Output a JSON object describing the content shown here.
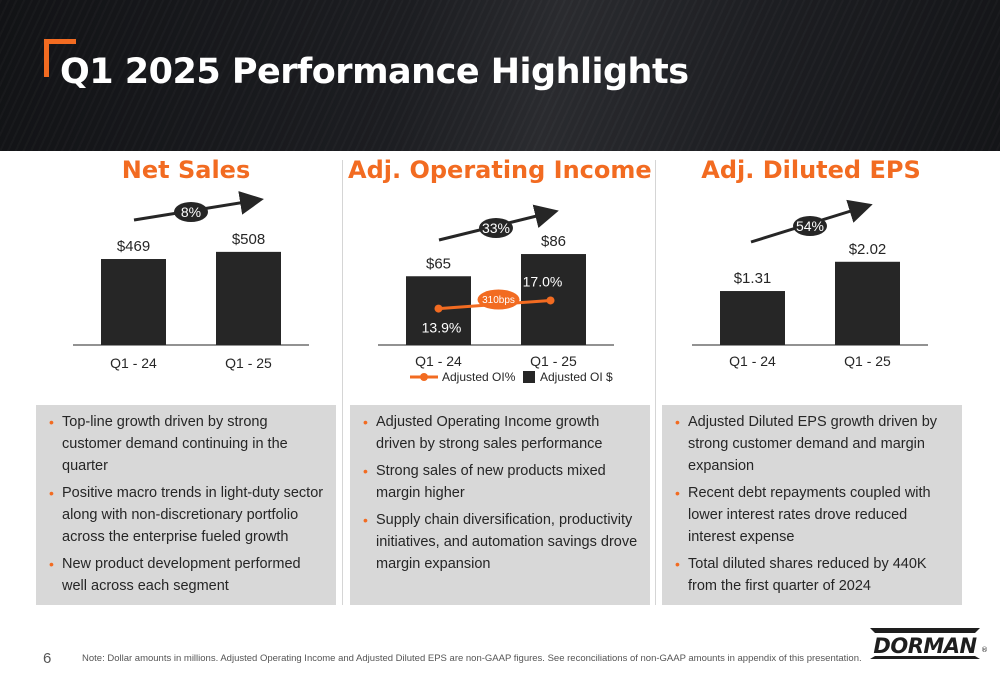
{
  "header": {
    "title": "Q1 2025 Performance Highlights"
  },
  "panels": [
    {
      "title": "Net Sales",
      "chart_data": {
        "type": "bar",
        "categories": [
          "Q1 - 24",
          "Q1 - 25"
        ],
        "values": [
          469,
          508
        ],
        "value_labels": [
          "$469",
          "$508"
        ],
        "growth_label": "8%",
        "bar_color": "#262626",
        "ylim": [
          0,
          600
        ]
      },
      "bullets": [
        "Top-line growth driven by strong customer demand continuing in the quarter",
        "Positive macro trends in light-duty sector along with non-discretionary portfolio across the enterprise fueled growth",
        "New product development performed well across each segment"
      ]
    },
    {
      "title": "Adj. Operating Income",
      "chart_data": {
        "type": "bar",
        "categories": [
          "Q1 - 24",
          "Q1 - 25"
        ],
        "values": [
          65,
          86
        ],
        "value_labels": [
          "$65",
          "$86"
        ],
        "growth_label": "33%",
        "bar_color": "#262626",
        "ylim": [
          0,
          104
        ],
        "line_series": {
          "name": "Adjusted OI%",
          "values": [
            13.9,
            17.0
          ],
          "labels": [
            "13.9%",
            "17.0%"
          ],
          "color": "#f26b21",
          "ylim": [
            0,
            42
          ]
        },
        "delta_label": "310bps",
        "legend": {
          "line": "Adjusted OI%",
          "bar": "Adjusted OI $"
        }
      },
      "bullets": [
        "Adjusted Operating Income growth driven by strong sales performance",
        "Strong sales of new products mixed margin higher",
        "Supply chain diversification, productivity initiatives, and automation savings drove margin expansion"
      ]
    },
    {
      "title": "Adj. Diluted EPS",
      "chart_data": {
        "type": "bar",
        "categories": [
          "Q1 - 24",
          "Q1 - 25"
        ],
        "values": [
          1.31,
          2.02
        ],
        "value_labels": [
          "$1.31",
          "$2.02"
        ],
        "growth_label": "54%",
        "bar_color": "#262626",
        "ylim": [
          0,
          2.5
        ]
      },
      "bullets": [
        "Adjusted Diluted EPS growth driven by strong customer demand and margin expansion",
        "Recent debt repayments coupled with lower interest rates drove reduced interest expense",
        "Total diluted shares reduced by 440K from the first quarter of 2024"
      ]
    }
  ],
  "footer": {
    "page_number": "6",
    "note": "Note: Dollar amounts in millions. Adjusted Operating Income and Adjusted Diluted EPS are non-GAAP figures. See reconciliations of non-GAAP amounts in appendix of this presentation.",
    "logo_text": "DORMAN",
    "logo_mark": "®"
  },
  "colors": {
    "accent": "#f26b21",
    "bar": "#262626",
    "bullet_bg": "#d8d8d8"
  }
}
